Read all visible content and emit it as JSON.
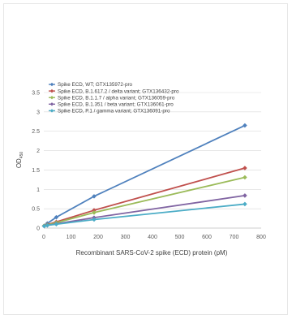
{
  "chart_data": {
    "type": "line",
    "xlabel": "Recombinant SARS-CoV-2 spike (ECD) protein (pM)",
    "ylabel": "OD",
    "ylabel_sub": "450",
    "xlim": [
      0,
      800
    ],
    "ylim": [
      0,
      3.5
    ],
    "x_ticks": [
      "0",
      "100",
      "200",
      "300",
      "400",
      "500",
      "600",
      "700",
      "800"
    ],
    "y_ticks": [
      "0",
      "0.5",
      "1",
      "1.5",
      "2",
      "2.5",
      "3",
      "3.5"
    ],
    "grid": "horizontal",
    "legend_position": "top-left",
    "series": [
      {
        "name": "Spike ECD, WT; GTX135972-pro",
        "color": "#4f81bd",
        "x": [
          1.5,
          13,
          46,
          185,
          740
        ],
        "y": [
          0.06,
          0.12,
          0.28,
          0.82,
          2.65
        ]
      },
      {
        "name": "Spike ECD, B.1.617.2 / delta variant; GTX136432-pro",
        "color": "#c0504d",
        "x": [
          1.5,
          13,
          46,
          185,
          740
        ],
        "y": [
          0.06,
          0.09,
          0.16,
          0.46,
          1.55
        ]
      },
      {
        "name": "Spike ECD, B.1.1.7 / alpha variant; GTX136059-pro",
        "color": "#9bbb59",
        "x": [
          1.5,
          13,
          46,
          185,
          740
        ],
        "y": [
          0.06,
          0.08,
          0.14,
          0.4,
          1.31
        ]
      },
      {
        "name": "Spike ECD, B.1.351 / beta variant; GTX136061-pro",
        "color": "#8064a2",
        "x": [
          1.5,
          13,
          46,
          185,
          740
        ],
        "y": [
          0.05,
          0.07,
          0.11,
          0.27,
          0.84
        ]
      },
      {
        "name": "Spike ECD, P.1 / gamma variant; GTX136091-pro",
        "color": "#4bacc6",
        "x": [
          1.5,
          13,
          46,
          185,
          740
        ],
        "y": [
          0.05,
          0.07,
          0.1,
          0.22,
          0.62
        ]
      }
    ]
  }
}
